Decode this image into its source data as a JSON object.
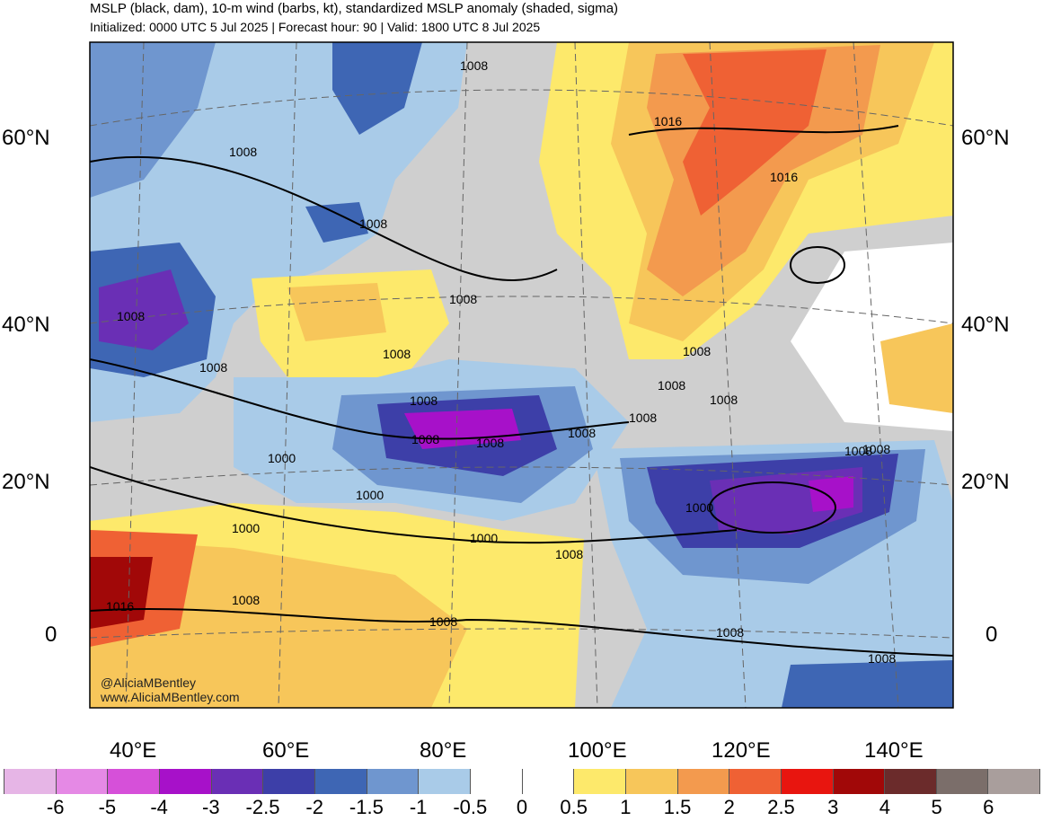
{
  "header": {
    "title": "MSLP (black, dam), 10-m wind (barbs, kt), standardized MSLP anomaly (shaded, sigma)",
    "subtitle": "Initialized: 0000 UTC 5 Jul 2025 | Forecast hour: 90 | Valid: 1800 UTC 8 Jul 2025"
  },
  "axes": {
    "lat_labels_left": [
      "60°N",
      "40°N",
      "20°N",
      "0"
    ],
    "lat_labels_right": [
      "60°N",
      "40°N",
      "20°N",
      "0"
    ],
    "lon_labels": [
      "40°E",
      "60°E",
      "80°E",
      "100°E",
      "120°E",
      "140°E"
    ]
  },
  "contour_labels": [
    "1008",
    "1008",
    "1016",
    "1016",
    "1008",
    "1008",
    "1008",
    "1008",
    "1008",
    "1008",
    "1008",
    "1008",
    "1008",
    "1008",
    "1008",
    "1008",
    "1000",
    "1000",
    "1000",
    "1000",
    "1000",
    "1008",
    "1008",
    "1008",
    "1008",
    "1016",
    "1008",
    "1008",
    "1008",
    "1008"
  ],
  "colorbar": {
    "ticks": [
      "-6",
      "-5",
      "-4",
      "-3",
      "-2.5",
      "-2",
      "-1.5",
      "-1",
      "-0.5",
      "0",
      "0.5",
      "1",
      "1.5",
      "2",
      "2.5",
      "3",
      "4",
      "5",
      "6"
    ],
    "colors": [
      "#e6b5e6",
      "#e589e5",
      "#d650d9",
      "#a711c9",
      "#6a2fb5",
      "#3d3fa8",
      "#3e66b4",
      "#6f96cf",
      "#a9cbe8",
      "#ffffff",
      "#ffffff",
      "#fde96b",
      "#f7c65a",
      "#f39a4e",
      "#ef6134",
      "#e8150f",
      "#a10808",
      "#6b2b2b",
      "#7b6e6a",
      "#a99e9c"
    ]
  },
  "credits": {
    "line1": "@AliciaMBentley",
    "line2": "www.AliciaMBentley.com"
  }
}
